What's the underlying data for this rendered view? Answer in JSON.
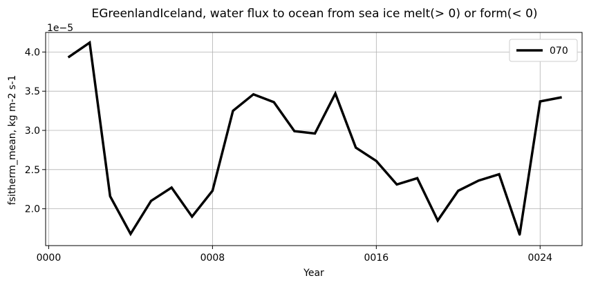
{
  "chart_data": {
    "type": "line",
    "title": "EGreenlandIceland, water flux to ocean from sea ice melt(> 0) or form(< 0)",
    "xlabel": "Year",
    "ylabel": "fsitherm_mean, kg m-2 s-1",
    "y_offset_label": "1e−5",
    "y_scale": 1e-05,
    "xlim": [
      -0.15,
      26.05
    ],
    "ylim": [
      1.53,
      4.25
    ],
    "grid": true,
    "legend_position": "top-right",
    "x_ticks": [
      0,
      8,
      16,
      24
    ],
    "x_tick_labels": [
      "0000",
      "0008",
      "0016",
      "0024"
    ],
    "y_ticks": [
      2.0,
      2.5,
      3.0,
      3.5,
      4.0
    ],
    "y_tick_labels": [
      "2.0",
      "2.5",
      "3.0",
      "3.5",
      "4.0"
    ],
    "series": [
      {
        "name": "070",
        "color": "#000000",
        "x": [
          1,
          2,
          3,
          4,
          5,
          6,
          7,
          8,
          9,
          10,
          11,
          12,
          13,
          14,
          15,
          16,
          17,
          18,
          19,
          20,
          21,
          22,
          23,
          24,
          25
        ],
        "values": [
          3.94,
          4.12,
          2.16,
          1.68,
          2.1,
          2.27,
          1.9,
          2.23,
          3.25,
          3.46,
          3.36,
          2.99,
          2.96,
          3.47,
          2.78,
          2.61,
          2.31,
          2.39,
          1.85,
          2.23,
          2.36,
          2.44,
          1.67,
          3.37,
          3.42
        ]
      }
    ]
  }
}
